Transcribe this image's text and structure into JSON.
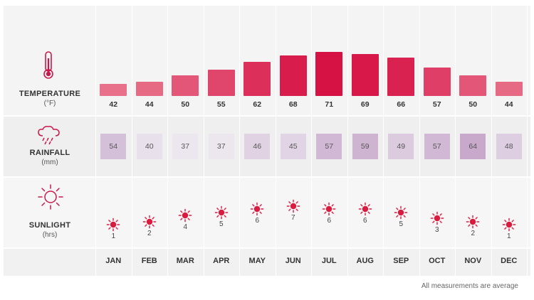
{
  "rows": {
    "temperature": {
      "title": "TEMPERATURE",
      "unit": "(°F)"
    },
    "rainfall": {
      "title": "RAINFALL",
      "unit": "(mm)"
    },
    "sunlight": {
      "title": "SUNLIGHT",
      "unit": "(hrs)"
    }
  },
  "icons": {
    "temperature": "thermometer-icon",
    "rainfall": "rain-cloud-icon",
    "sunlight": "sun-icon"
  },
  "colors": {
    "temp_low": "#e8708a",
    "temp_high": "#d61244",
    "rain_low": "#ece7ef",
    "rain_high": "#c8a9cc",
    "sun": "#d81b3f"
  },
  "footnote": "All measurements are average",
  "chart_data": {
    "type": "table",
    "categories": [
      "JAN",
      "FEB",
      "MAR",
      "APR",
      "MAY",
      "JUN",
      "JUL",
      "AUG",
      "SEP",
      "OCT",
      "NOV",
      "DEC"
    ],
    "series": [
      {
        "name": "TEMPERATURE",
        "values": [
          42,
          44,
          50,
          55,
          62,
          68,
          71,
          69,
          66,
          57,
          50,
          44
        ]
      },
      {
        "name": "RAINFALL",
        "values": [
          54,
          40,
          37,
          37,
          46,
          45,
          57,
          59,
          49,
          57,
          64,
          48
        ]
      },
      {
        "name": "SUNLIGHT",
        "values": [
          1,
          2,
          4,
          5,
          6,
          7,
          6,
          6,
          5,
          3,
          2,
          1
        ]
      }
    ]
  }
}
